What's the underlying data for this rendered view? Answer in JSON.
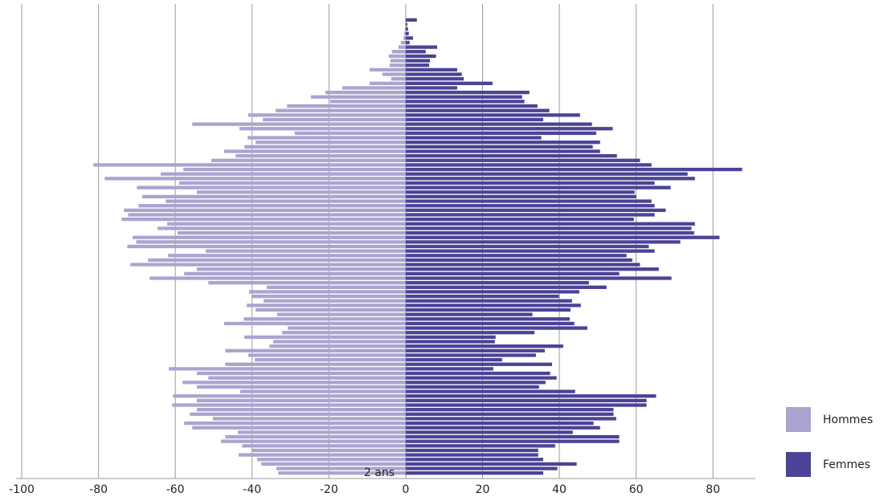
{
  "chart_data": {
    "type": "bar",
    "orientation": "horizontal",
    "categories": [
      "2 ans",
      null,
      null,
      null,
      null,
      null,
      null,
      null,
      null,
      null,
      null,
      null,
      null,
      null,
      null,
      null,
      null,
      null,
      null,
      null,
      null,
      null,
      null,
      null,
      null,
      null,
      null,
      null,
      null,
      null,
      null,
      null,
      null,
      null,
      null,
      null,
      null,
      null,
      null,
      null,
      null,
      null,
      null,
      null,
      null,
      null,
      null,
      null,
      null,
      null,
      null,
      null,
      null,
      null,
      null,
      null,
      null,
      null,
      null,
      null,
      null,
      null,
      null,
      null,
      null,
      null,
      null,
      null,
      null,
      null,
      null,
      null,
      null,
      null,
      null,
      null,
      null,
      null,
      null,
      null,
      null,
      null,
      null,
      null,
      null,
      null,
      null,
      null,
      null,
      null,
      null,
      null,
      null,
      null,
      null,
      null,
      null,
      null,
      null,
      null,
      null
    ],
    "series": [
      {
        "name": "Hommes",
        "color": "#aaa4d0",
        "values": [
          -33.2,
          -33.7,
          -37.6,
          -38.7,
          -43.5,
          -40.1,
          -42.6,
          -48.1,
          -47,
          -43.7,
          -55.6,
          -57.7,
          -50.2,
          -56.2,
          -54.4,
          -60.8,
          -54.4,
          -60.6,
          -43.1,
          -54.4,
          -58.1,
          -51.4,
          -54.4,
          -61.7,
          -47,
          -39.3,
          -41,
          -47,
          -35.5,
          -34.5,
          -42,
          -32.2,
          -30.7,
          -47.3,
          -42.2,
          -33.5,
          -39.1,
          -41.4,
          -37,
          -40.1,
          -40.8,
          -36.2,
          -51.4,
          -66.7,
          -57.7,
          -54.4,
          -71.7,
          -67.1,
          -61.9,
          -52.1,
          -72.5,
          -70.2,
          -71.1,
          -59.4,
          -64.6,
          -62.1,
          -74,
          -72.3,
          -73.4,
          -69.6,
          -62.5,
          -68.6,
          -54.4,
          -70,
          -59,
          -78.4,
          -63.8,
          -57.9,
          -81.3,
          -50.6,
          -44.3,
          -47.3,
          -42,
          -39.1,
          -41.2,
          -28.9,
          -43.3,
          -55.6,
          -37.2,
          -41,
          -33.9,
          -30.9,
          -19.7,
          -24.7,
          -20.9,
          -16.5,
          -9.4,
          -3.8,
          -6.1,
          -9.4,
          -4.2,
          -4,
          -4.4,
          -3.6,
          -1.9,
          -1.3,
          -0.6,
          -0.4,
          -0.2,
          -0.1,
          -0.1
        ]
      },
      {
        "name": "Femmes",
        "color": "#4b4396",
        "values": [
          35.8,
          39.5,
          44.5,
          35.8,
          34.5,
          34.5,
          38.9,
          55.6,
          55.6,
          43.5,
          50.6,
          48.9,
          54.8,
          54.1,
          54.1,
          62.7,
          62.7,
          65.2,
          44.1,
          34.7,
          36.4,
          39.3,
          37.6,
          22.8,
          38.1,
          25.1,
          33.9,
          36.2,
          41,
          23.2,
          23.4,
          33.5,
          47.3,
          43.9,
          42.7,
          33,
          42.9,
          45.6,
          43.3,
          39.9,
          45.2,
          52.3,
          47.7,
          69.2,
          55.6,
          65.9,
          61,
          59,
          57.5,
          64.8,
          63.3,
          71.5,
          81.7,
          75.1,
          74.4,
          75.3,
          59.4,
          64.8,
          67.7,
          64.8,
          64,
          60,
          59.6,
          69,
          64.8,
          75.3,
          73.4,
          87.6,
          64,
          61,
          55,
          50.6,
          48.7,
          50.6,
          35.3,
          49.6,
          53.9,
          48.5,
          35.8,
          45.4,
          37.4,
          34.3,
          30.9,
          30.3,
          32.2,
          13.4,
          22.6,
          15.1,
          14.6,
          13.4,
          6.1,
          6.3,
          7.9,
          5.2,
          8.2,
          1,
          1.9,
          0.8,
          0.6,
          0.4,
          2.9
        ]
      }
    ],
    "xlim": [
      -100,
      90
    ],
    "xticks": [
      -100,
      -80,
      -60,
      -40,
      -20,
      0,
      20,
      40,
      60,
      80
    ],
    "grid": true,
    "legend": "right"
  }
}
